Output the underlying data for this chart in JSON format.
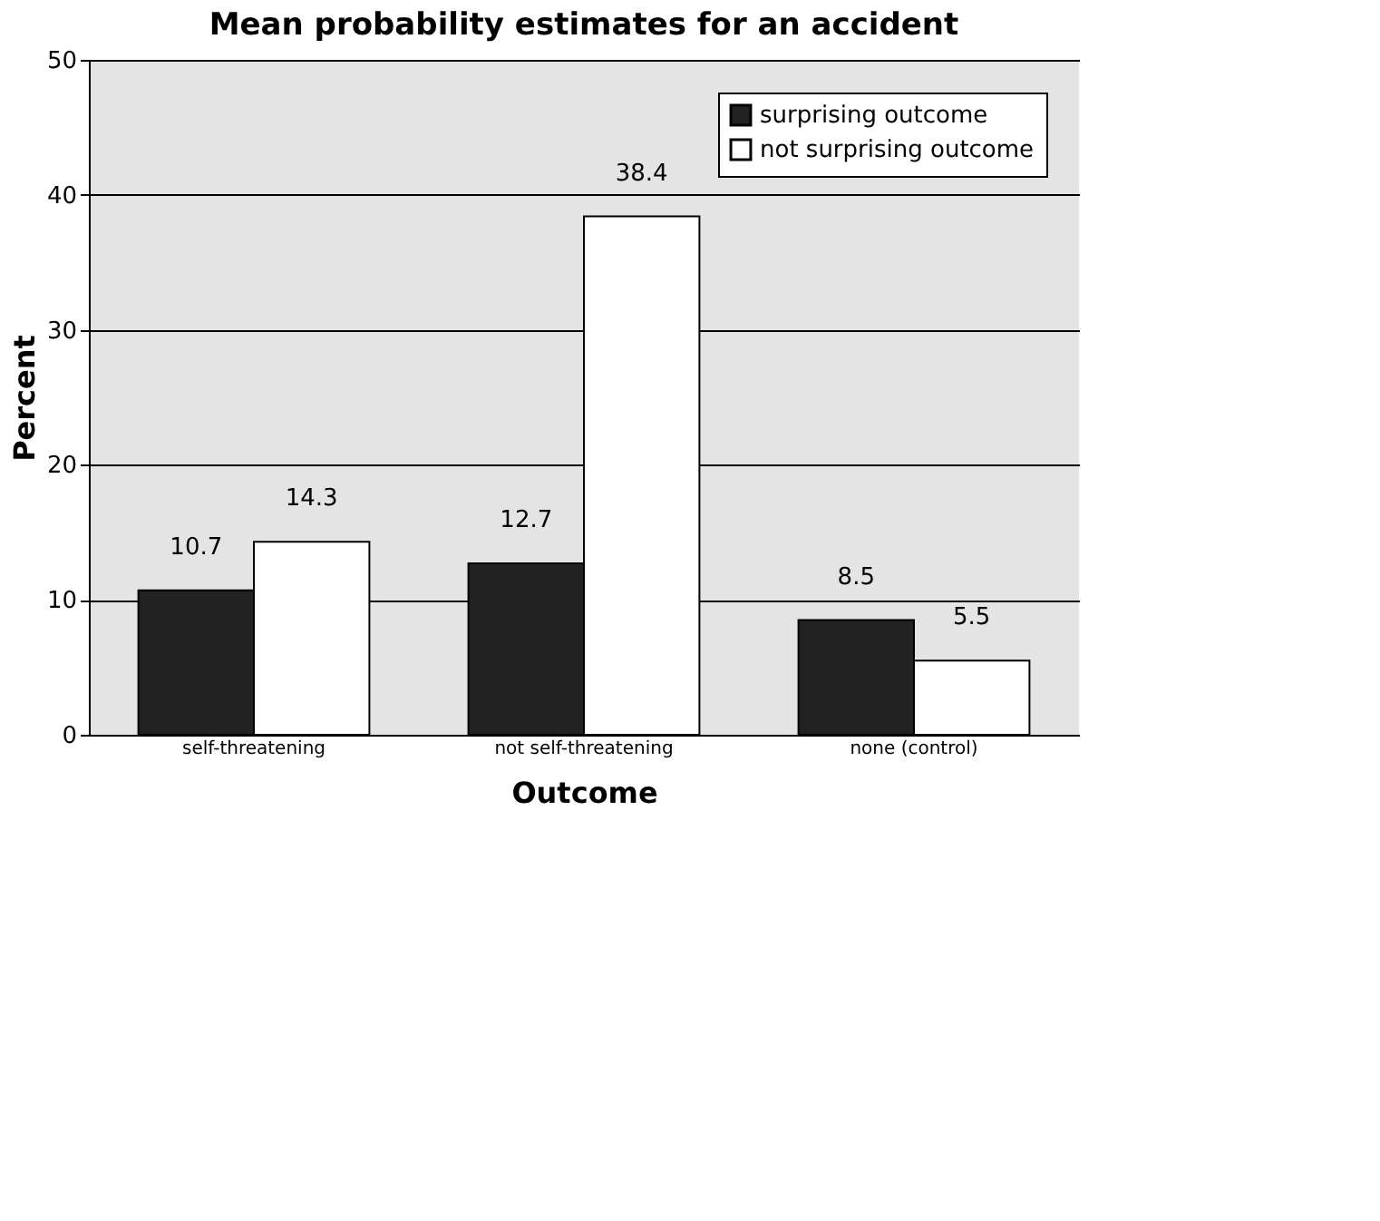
{
  "chart_data": {
    "type": "bar",
    "title": "Mean probability estimates for an accident",
    "xlabel": "Outcome",
    "ylabel": "Percent",
    "categories": [
      "self-threatening",
      "not self-threatening",
      "none (control)"
    ],
    "series": [
      {
        "name": "surprising outcome",
        "color": "#222222",
        "values": [
          10.7,
          12.7,
          8.5
        ]
      },
      {
        "name": "not surprising outcome",
        "color": "#ffffff",
        "values": [
          14.3,
          38.4,
          5.5
        ]
      }
    ],
    "ylim": [
      0,
      50
    ],
    "yticks": [
      0,
      10,
      20,
      30,
      40,
      50
    ],
    "grid": "y",
    "legend": "top right",
    "data_labels": true
  }
}
